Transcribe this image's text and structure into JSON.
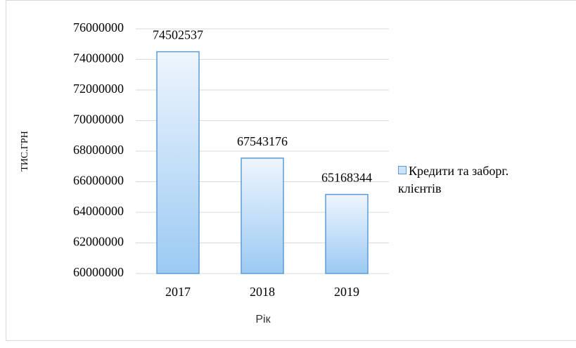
{
  "chart_data": {
    "type": "bar",
    "categories": [
      "2017",
      "2018",
      "2019"
    ],
    "values": [
      74502537,
      67543176,
      65168344
    ],
    "color": "#5b9bd5",
    "ylim": [
      60000000,
      76000000
    ],
    "yticks": [
      60000000,
      62000000,
      64000000,
      66000000,
      68000000,
      70000000,
      72000000,
      74000000,
      76000000
    ],
    "grid": true,
    "y_label": "ТИС.ГРН",
    "x_label": "Рік",
    "series_name": "Кредити та заборг. клієнтів",
    "legend": "right"
  }
}
